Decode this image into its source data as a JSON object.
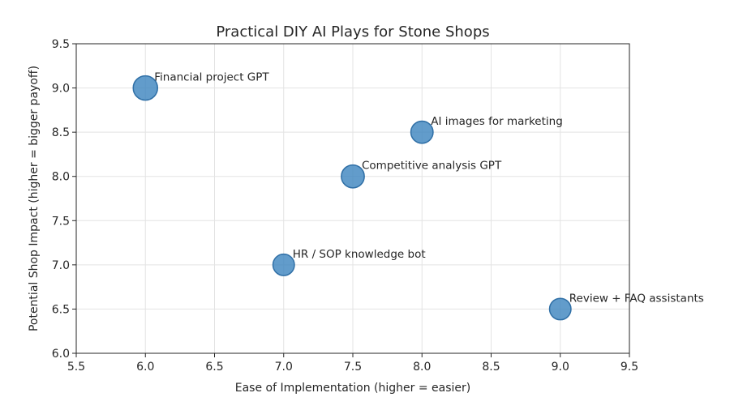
{
  "chart_data": {
    "type": "scatter",
    "title": "Practical DIY AI Plays for Stone Shops",
    "xlabel": "Ease of Implementation (higher = easier)",
    "ylabel": "Potential Shop Impact (higher = bigger payoff)",
    "xlim": [
      5.5,
      9.5
    ],
    "ylim": [
      6.0,
      9.5
    ],
    "xticks": [
      "5.5",
      "6.0",
      "6.5",
      "7.0",
      "7.5",
      "8.0",
      "8.5",
      "9.0",
      "9.5"
    ],
    "yticks": [
      "6.0",
      "6.5",
      "7.0",
      "7.5",
      "8.0",
      "8.5",
      "9.0",
      "9.5"
    ],
    "grid": true,
    "marker_color": "#3f86c0",
    "points": [
      {
        "label": "Financial project GPT",
        "x": 6.0,
        "y": 9.0,
        "size": 9
      },
      {
        "label": "AI images for marketing",
        "x": 8.0,
        "y": 8.5,
        "size": 7.5
      },
      {
        "label": "Competitive analysis GPT",
        "x": 7.5,
        "y": 8.0,
        "size": 8
      },
      {
        "label": "HR / SOP knowledge bot",
        "x": 7.0,
        "y": 7.0,
        "size": 7
      },
      {
        "label": "Review + FAQ assistants",
        "x": 9.0,
        "y": 6.5,
        "size": 7
      }
    ]
  }
}
